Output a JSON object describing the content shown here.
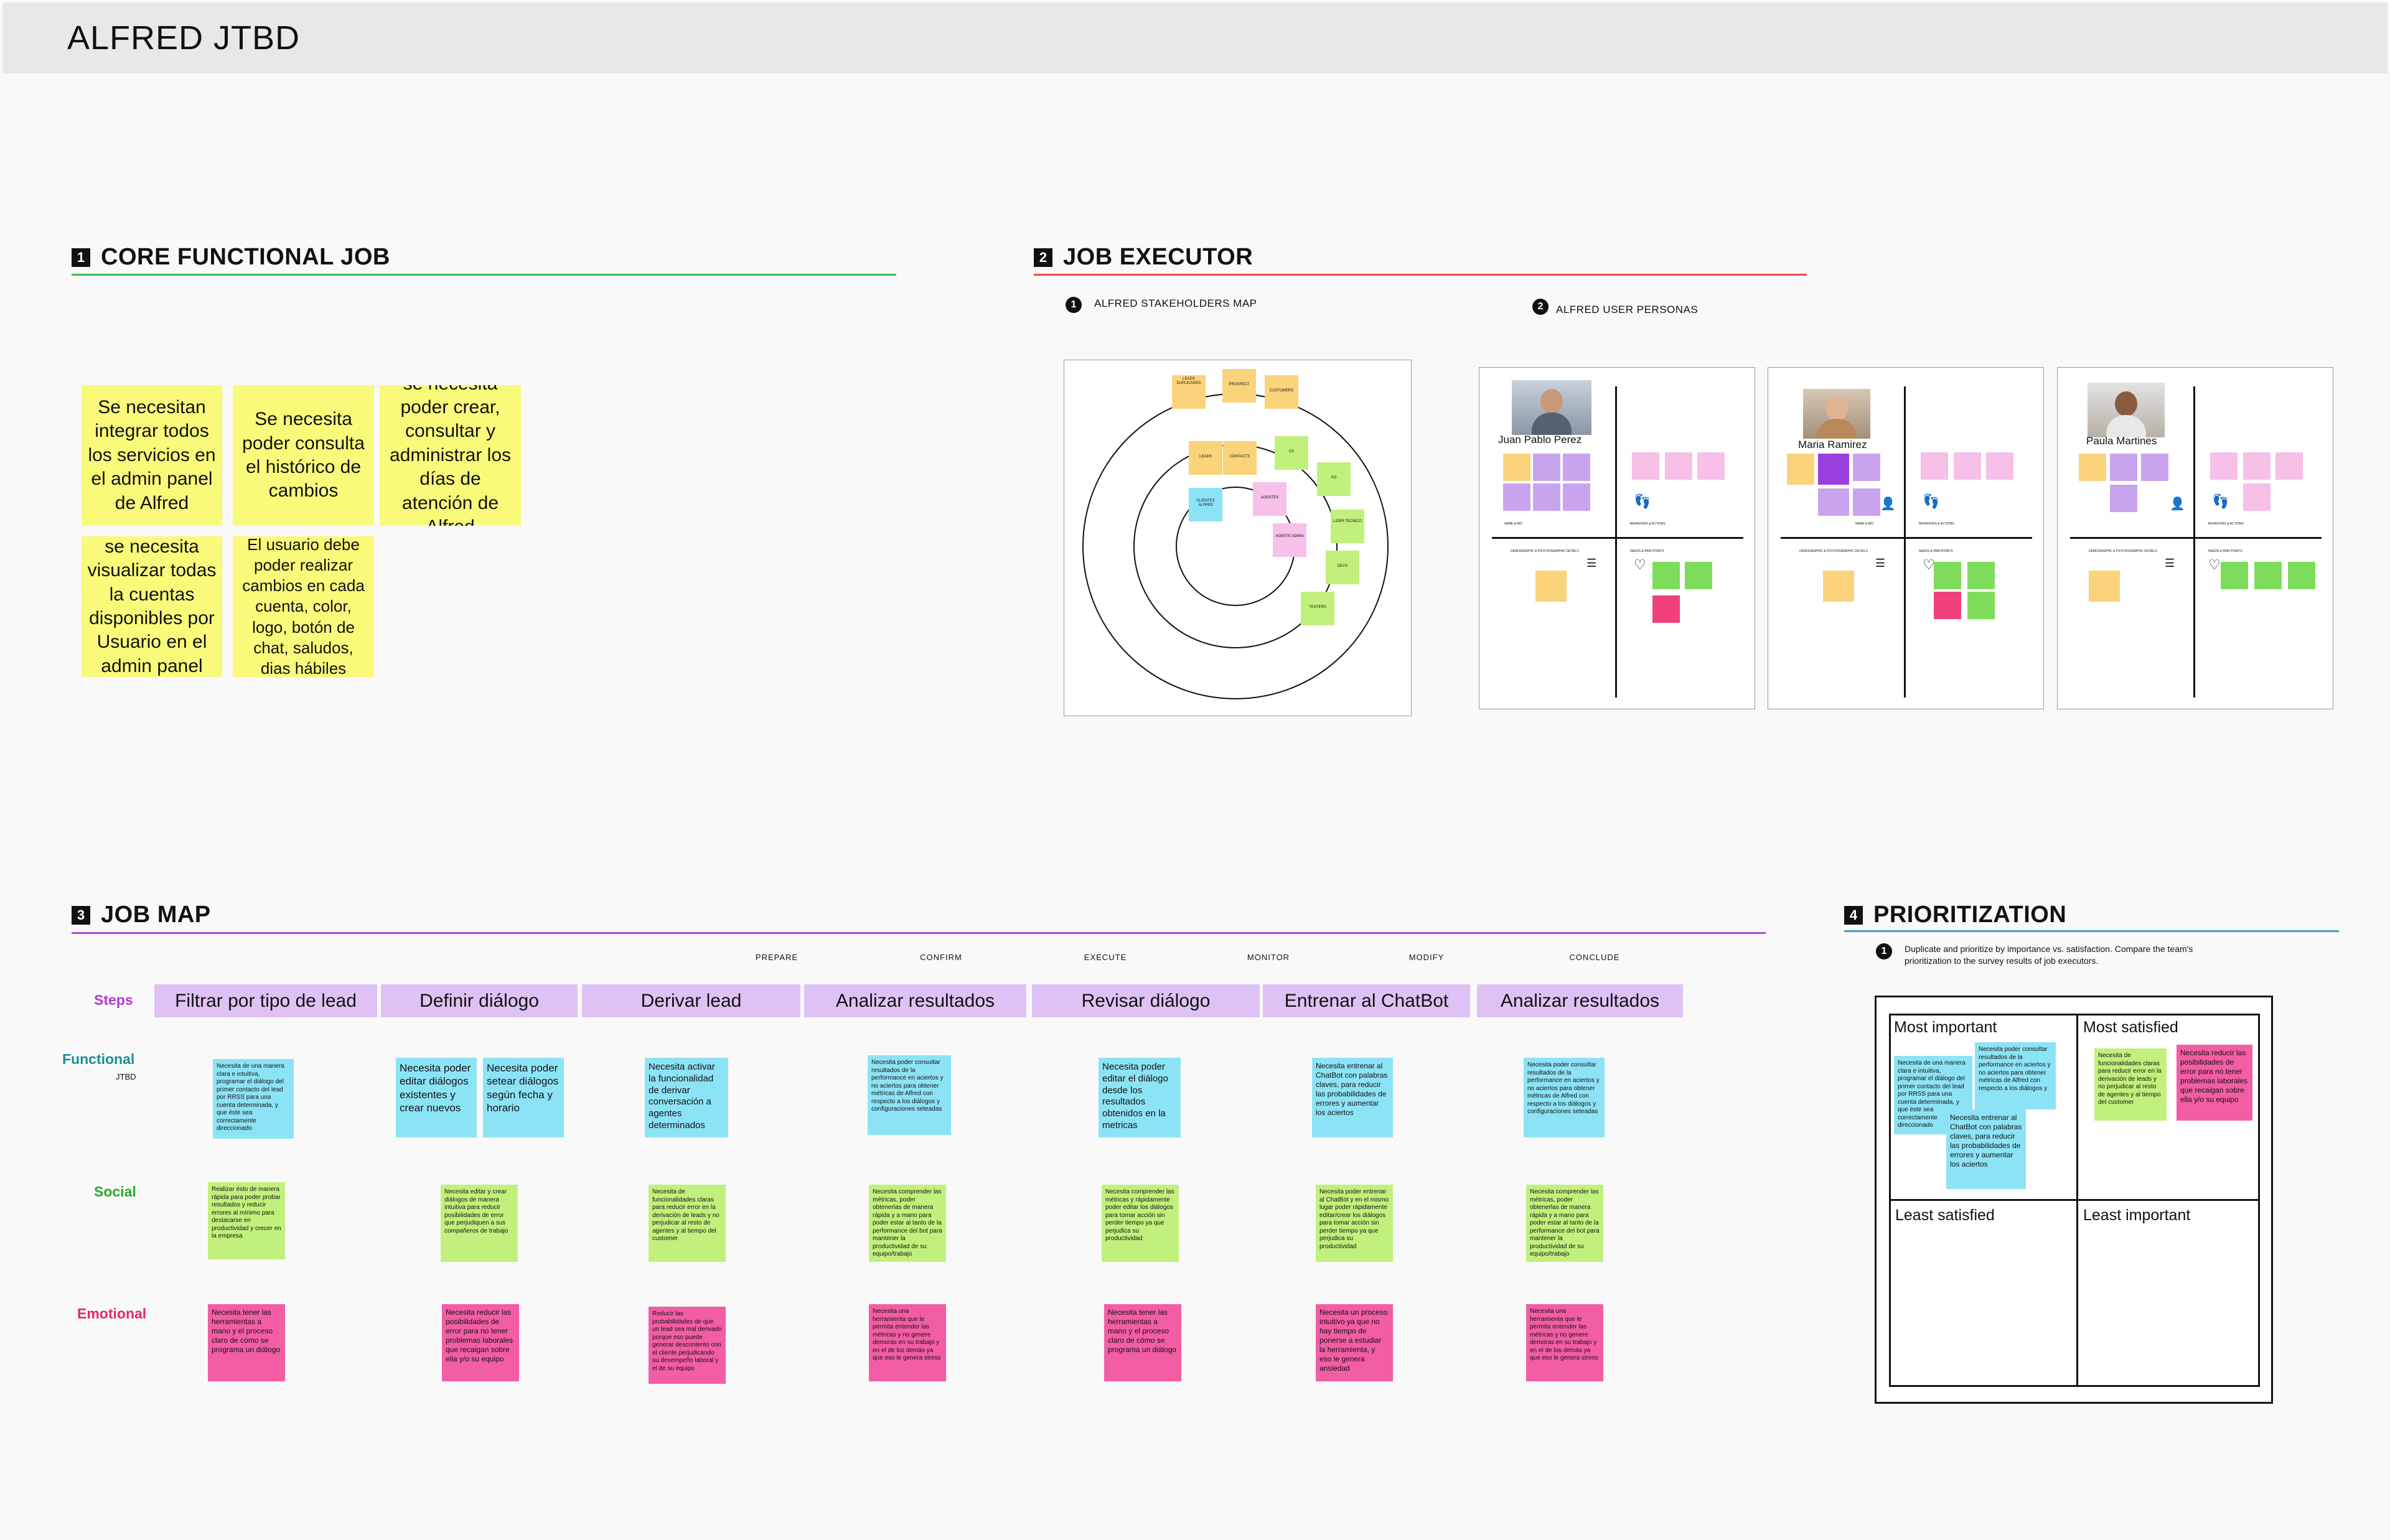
{
  "board": {
    "title": "ALFRED JTBD"
  },
  "sections": {
    "core": {
      "num": "1",
      "title": "CORE FUNCTIONAL JOB",
      "color": "#3cba5a"
    },
    "executor": {
      "num": "2",
      "title": "JOB EXECUTOR",
      "color": "#e84a4a",
      "sub1": {
        "num": "1",
        "label": "ALFRED STAKEHOLDERS MAP"
      },
      "sub2": {
        "num": "2",
        "label": "ALFRED USER PERSONAS"
      }
    },
    "jobmap": {
      "num": "3",
      "title": "JOB MAP",
      "color": "#b04ad8"
    },
    "prioritization": {
      "num": "4",
      "title": "PRIORITIZATION",
      "color": "#3aa0c8",
      "sub_num": "1",
      "instruction": "Duplicate and prioritize by importance vs. satisfaction. Compare the team's prioritization to the survey results of job executors."
    }
  },
  "core_stickies": [
    "Se necesitan integrar todos los servicios en el admin panel de Alfred",
    "Se necesita poder consulta el histórico de cambios",
    "se necesita poder crear, consultar y administrar los días de atención de Alfred",
    "se necesita visualizar todas la cuentas disponibles por Usuario en el admin panel",
    "El usuario debe poder realizar cambios en cada cuenta, color, logo, botón de chat, saludos, dias hábiles"
  ],
  "stakeholders": {
    "outer": [
      "LEADS DUPLICADOS",
      "PROSPECT",
      "CUSTOMERS",
      "PO",
      "LIDER TECNICO",
      "DEVS",
      "TESTERS"
    ],
    "middle": [
      "LEADS",
      "CONTACTS",
      "CS",
      "AGENTES",
      "AGENTE ADMIN"
    ],
    "inner": [
      "CLIENTES ALFRED"
    ]
  },
  "personas": [
    {
      "name": "Juan Pablo Perez"
    },
    {
      "name": "Maria Ramirez"
    },
    {
      "name": "Paula Martines"
    }
  ],
  "persona_labels": {
    "name_bio": "NAME & BIO",
    "behaviors": "BEHAVIORS & ACTIONS",
    "demographic": "DEMOGRAPHIC & PSYCHOGRAPHIC DETAILS",
    "needs": "NEEDS & PAIN POINTS"
  },
  "jobmap": {
    "phases": [
      "PREPARE",
      "CONFIRM",
      "EXECUTE",
      "MONITOR",
      "MODIFY",
      "CONCLUDE"
    ],
    "steps_label": "Steps",
    "steps": [
      "Filtrar por tipo de lead",
      "Definir diálogo",
      "Derivar lead",
      "Analizar resultados",
      "Revisar diálogo",
      "Entrenar al ChatBot",
      "Analizar resultados"
    ],
    "row_functional": "Functional",
    "row_functional_sub": "JTBD",
    "row_social": "Social",
    "row_emotional": "Emotional",
    "functional": [
      "Necesita de una manera clara e intuitiva, programar el diálogo del primer contacto del lead por RRSS para una cuenta determinada, y que éste sea correctamente direccionado",
      "Necesita poder editar diálogos existentes y crear nuevos",
      "Necesita poder setear diálogos según fecha y horario",
      "Necesita activar la funcionalidad de derivar conversación a agentes determinados",
      "Necesita poder consultar resultados de la performance en aciertos y no aciertos para obtener métricas de Alfred con respecto a los diálogos y configuraciones seteadas",
      "Necesita poder editar el diálogo desde los resultados obtenidos en la metricas",
      "Necesita entrenar al ChatBot con palabras claves, para reducir las probabilidades de errores y aumentar los aciertos",
      "Necesita poder consultar resultados de la performance en aciertos y no aciertos para obtener métricas de Alfred con respecto a los diálogos y configuraciones seteadas"
    ],
    "social": [
      "Realizar ésto de manera rápida para poder probar resultados y reducir errores al mínimo para destacarse en productividad y crecer en la empresa",
      "Necesita editar y crear diálogos de manera intuitiva para reducir posibilidades de error que perjudiquen a sus compañeros de trabajo",
      "Necesita de funcionalidades claras para reducir error en la derivación de leads y no perjudicar al resto de agentes y al tiempo del customer",
      "Necesita comprender las métricas, poder obtenerlas de manera rápida y a mano para poder estar al tanto de la performance del bot para mantener la productividad de su equipo/trabajo",
      "Necesita comprender las métricas y rápidamente poder editar los diálogos para tomar acción sin perder tiempo ya que perjudica su productividad",
      "Necesita poder entrenar al ChatBot y en el mismo lugar poder rápidamente editar/crear los diálogos para tomar acción sin perder tiempo ya que perjudica su productividad",
      "Necesita comprender las métricas, poder obtenerlas de manera rápida y a mano para poder estar al tanto de la performance del bot para mantener la productividad de su equipo/trabajo"
    ],
    "emotional": [
      "Necesita tener las herramientas a mano y el proceso claro de cómo se programa un diálogo",
      "Necesita reducir las posibilidades de error para no tener problemas laborales que recaigan sobre ella y/o su equipo",
      "Reducir las probabilidades de que un lead sea mal derivado porque eso puede generar descontento con el cliente perjudicando su desempeño laboral y el de su equipo",
      "Necesita una herramienta que le permita entender las métricas y no genere demoras en su trabajo y en el de los demás ya que eso le genera stress",
      "Necesita tener las herramientas a mano y el proceso claro de cómo se programa un diálogo",
      "Necesita un proceso intuitivo ya que no hay tiempo de ponerse a estudiar la herramienta, y eso le genera ansiedad",
      "Necesita una herramienta que le permita entender las métricas y no genere demoras en su trabajo y en el de los demás ya que eso le genera stress"
    ]
  },
  "prioritization": {
    "q1": "Most important",
    "q2": "Most satisfied",
    "q3": "Least satisfied",
    "q4": "Least important",
    "most_important": [
      "Necesita de una manera clara e intuitiva, programar el diálogo del primer contacto del lead por RRSS para una cuenta determinada, y que éste sea correctamente direccionado",
      "Necesita poder consultar resultados de la performance en aciertos y no aciertos para obtener métricas de Alfred con respecto a los diálogos y",
      "Necesita entrenar al ChatBot con palabras claves, para reducir las probabilidades de errores y aumentar los aciertos"
    ],
    "most_satisfied": [
      "Necesita de funcionalidades claras para reducir error en la derivación de leads y no perjudicar al resto de agentes y al tiempo del customer",
      "Necesita reducir las posibilidades de error para no tener problemas laborales que recaigan sobre ella y/o su equipo"
    ]
  },
  "colors": {
    "yellow": "#fafa7a",
    "cyan": "#8de3f6",
    "lime": "#c2f07c",
    "pink": "#f25da4",
    "lavender": "#dfc2f5",
    "orange": "#fbd37a",
    "purple": "#9a3fe0",
    "steps_purple": "#b03ad0",
    "functional_teal": "#1a8f9a",
    "social_green": "#2aa82a",
    "emotional_pink": "#e02a6a"
  }
}
